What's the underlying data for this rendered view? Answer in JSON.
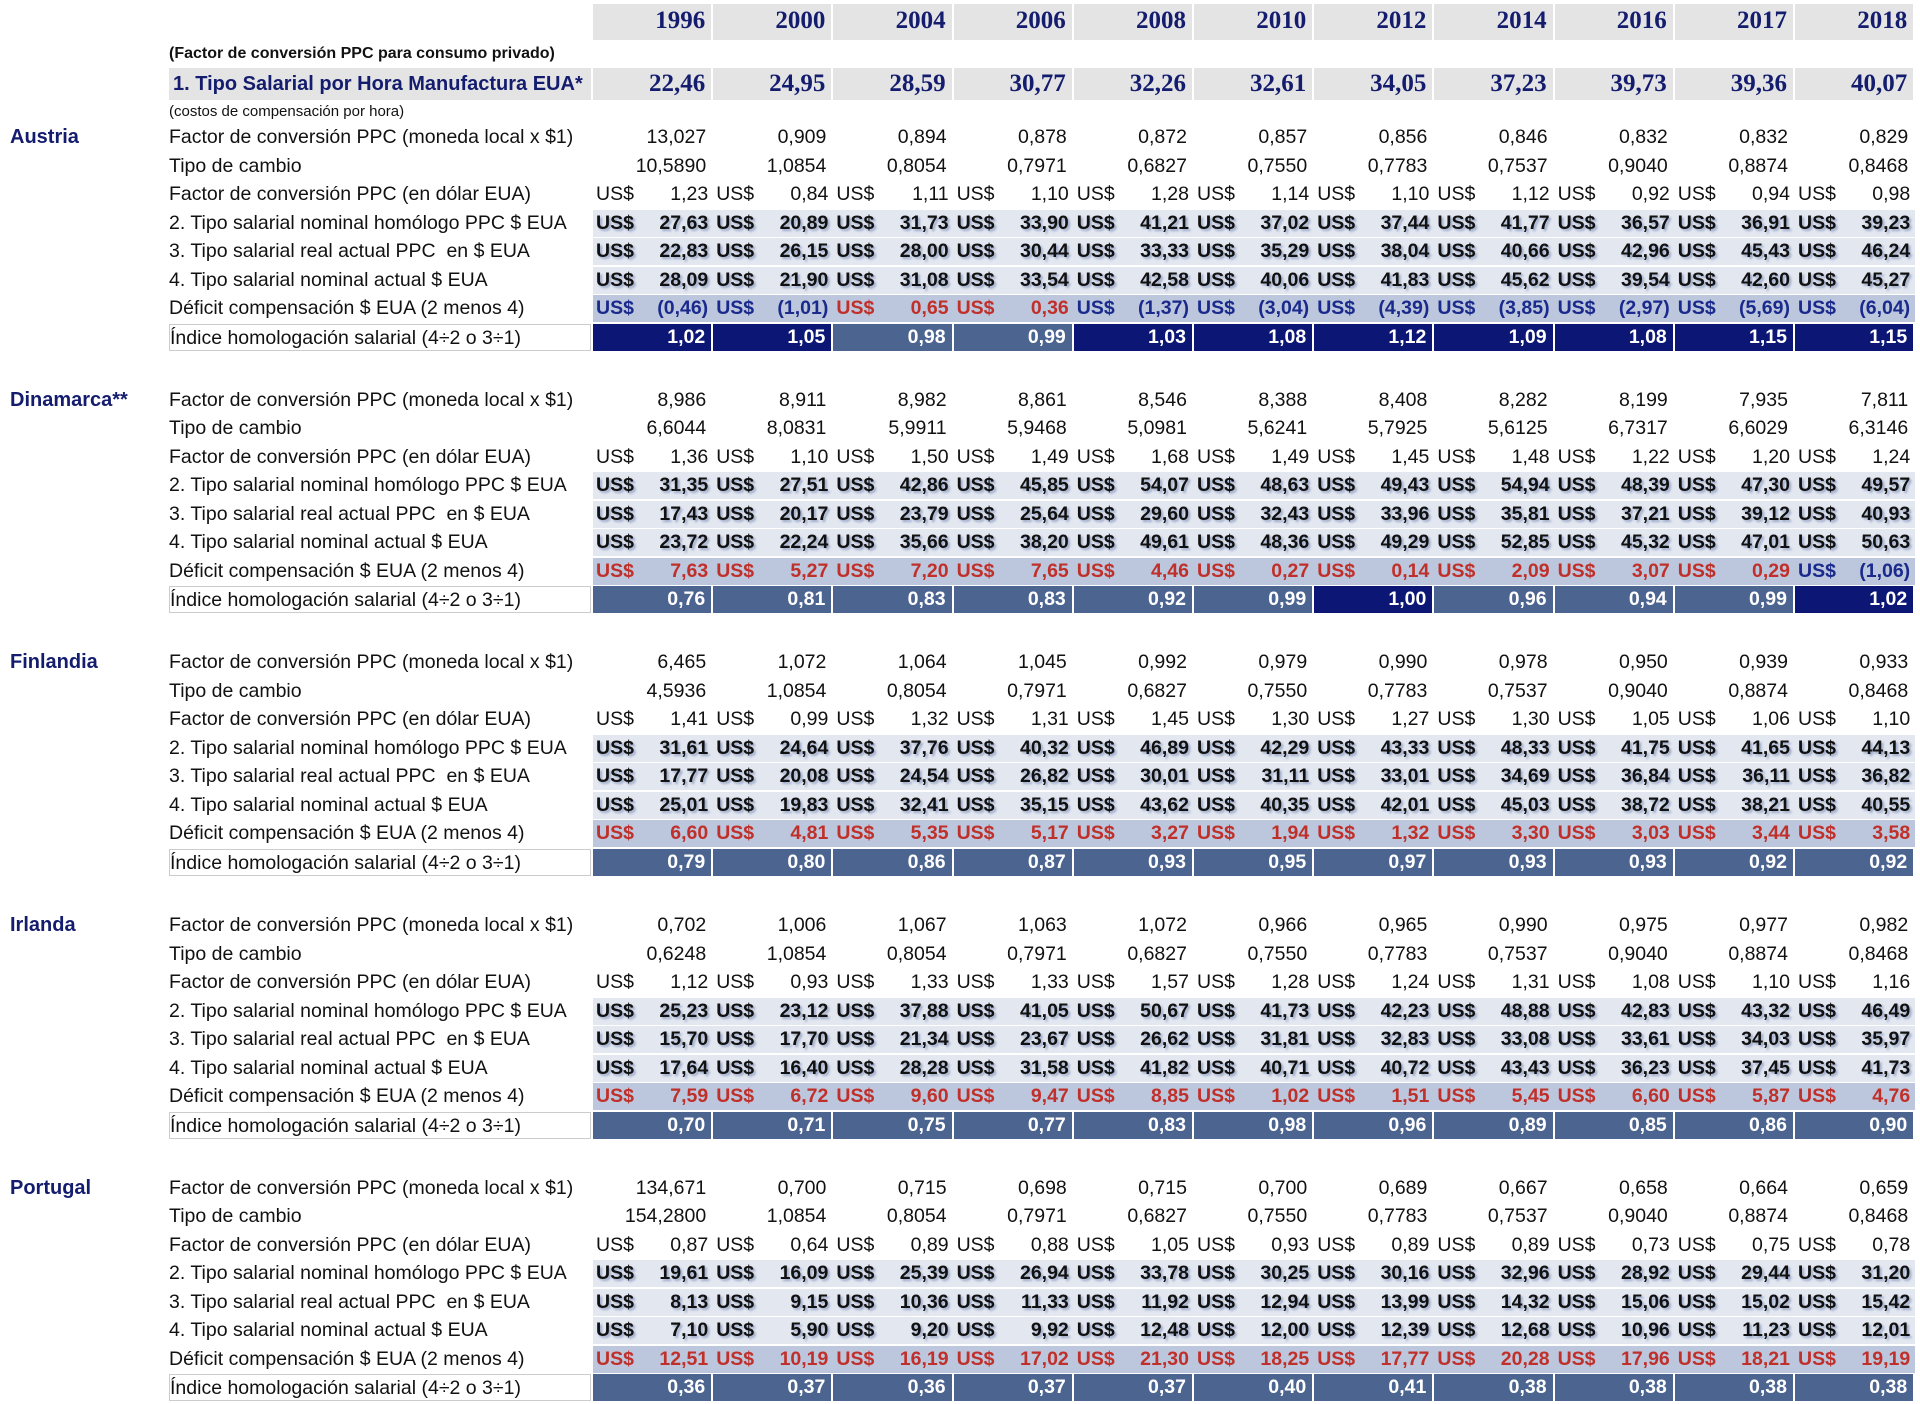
{
  "header": {
    "years": [
      "1996",
      "2000",
      "2004",
      "2006",
      "2008",
      "2010",
      "2012",
      "2014",
      "2016",
      "2017",
      "2018"
    ],
    "note": "(Factor de conversión PPC para consumo privado)",
    "us_row": {
      "label": "1. Tipo Salarial por Hora Manufactura EUA*",
      "values": [
        "22,46",
        "24,95",
        "28,59",
        "30,77",
        "32,26",
        "32,61",
        "34,05",
        "37,23",
        "39,73",
        "39,36",
        "40,07"
      ]
    },
    "us_note": "(costos de compensación por hora)"
  },
  "currency": "US$",
  "countries": [
    {
      "name": "Austria",
      "rows": [
        {
          "label": "Factor de conversión PPC (moneda local x $1)",
          "values": [
            "13,027",
            "0,909",
            "0,894",
            "0,878",
            "0,872",
            "0,857",
            "0,856",
            "0,846",
            "0,832",
            "0,832",
            "0,829"
          ]
        },
        {
          "label": "Tipo de cambio",
          "values": [
            "10,5890",
            "1,0854",
            "0,8054",
            "0,7971",
            "0,6827",
            "0,7550",
            "0,7783",
            "0,7537",
            "0,9040",
            "0,8874",
            "0,8468"
          ]
        },
        {
          "label": "Factor de conversión PPC (en dólar EUA)",
          "values": [
            "1,23",
            "0,84",
            "1,11",
            "1,10",
            "1,28",
            "1,14",
            "1,10",
            "1,12",
            "0,92",
            "0,94",
            "0,98"
          ]
        },
        {
          "label": "2. Tipo salarial nominal homólogo PPC $ EUA",
          "values": [
            "27,63",
            "20,89",
            "31,73",
            "33,90",
            "41,21",
            "37,02",
            "37,44",
            "41,77",
            "36,57",
            "36,91",
            "39,23"
          ]
        },
        {
          "label": "3. Tipo salarial real actual PPC  en $ EUA",
          "values": [
            "22,83",
            "26,15",
            "28,00",
            "30,44",
            "33,33",
            "35,29",
            "38,04",
            "40,66",
            "42,96",
            "45,43",
            "46,24"
          ]
        },
        {
          "label": "4. Tipo salarial nominal actual $ EUA",
          "values": [
            "28,09",
            "21,90",
            "31,08",
            "33,54",
            "42,58",
            "40,06",
            "41,83",
            "45,62",
            "39,54",
            "42,60",
            "45,27"
          ]
        },
        {
          "label": "Déficit compensación $ EUA (2 menos 4)",
          "values": [
            "(0,46)",
            "(1,01)",
            "0,65",
            "0,36",
            "(1,37)",
            "(3,04)",
            "(4,39)",
            "(3,85)",
            "(2,97)",
            "(5,69)",
            "(6,04)"
          ]
        },
        {
          "label": "Índice homologación salarial (4÷2 o 3÷1)",
          "values": [
            "1,02",
            "1,05",
            "0,98",
            "0,99",
            "1,03",
            "1,08",
            "1,12",
            "1,09",
            "1,08",
            "1,15",
            "1,15"
          ]
        }
      ]
    },
    {
      "name": "Dinamarca**",
      "rows": [
        {
          "label": "Factor de conversión PPC (moneda local x $1)",
          "values": [
            "8,986",
            "8,911",
            "8,982",
            "8,861",
            "8,546",
            "8,388",
            "8,408",
            "8,282",
            "8,199",
            "7,935",
            "7,811"
          ]
        },
        {
          "label": "Tipo de cambio",
          "values": [
            "6,6044",
            "8,0831",
            "5,9911",
            "5,9468",
            "5,0981",
            "5,6241",
            "5,7925",
            "5,6125",
            "6,7317",
            "6,6029",
            "6,3146"
          ]
        },
        {
          "label": "Factor de conversión PPC (en dólar EUA)",
          "values": [
            "1,36",
            "1,10",
            "1,50",
            "1,49",
            "1,68",
            "1,49",
            "1,45",
            "1,48",
            "1,22",
            "1,20",
            "1,24"
          ]
        },
        {
          "label": "2. Tipo salarial nominal homólogo PPC $ EUA",
          "values": [
            "31,35",
            "27,51",
            "42,86",
            "45,85",
            "54,07",
            "48,63",
            "49,43",
            "54,94",
            "48,39",
            "47,30",
            "49,57"
          ]
        },
        {
          "label": "3. Tipo salarial real actual PPC  en $ EUA",
          "values": [
            "17,43",
            "20,17",
            "23,79",
            "25,64",
            "29,60",
            "32,43",
            "33,96",
            "35,81",
            "37,21",
            "39,12",
            "40,93"
          ]
        },
        {
          "label": "4. Tipo salarial nominal actual $ EUA",
          "values": [
            "23,72",
            "22,24",
            "35,66",
            "38,20",
            "49,61",
            "48,36",
            "49,29",
            "52,85",
            "45,32",
            "47,01",
            "50,63"
          ]
        },
        {
          "label": "Déficit compensación $ EUA (2 menos 4)",
          "values": [
            "7,63",
            "5,27",
            "7,20",
            "7,65",
            "4,46",
            "0,27",
            "0,14",
            "2,09",
            "3,07",
            "0,29",
            "(1,06)"
          ]
        },
        {
          "label": "Índice homologación salarial (4÷2 o 3÷1)",
          "values": [
            "0,76",
            "0,81",
            "0,83",
            "0,83",
            "0,92",
            "0,99",
            "1,00",
            "0,96",
            "0,94",
            "0,99",
            "1,02"
          ]
        }
      ]
    },
    {
      "name": "Finlandia",
      "rows": [
        {
          "label": "Factor de conversión PPC (moneda local x $1)",
          "values": [
            "6,465",
            "1,072",
            "1,064",
            "1,045",
            "0,992",
            "0,979",
            "0,990",
            "0,978",
            "0,950",
            "0,939",
            "0,933"
          ]
        },
        {
          "label": "Tipo de cambio",
          "values": [
            "4,5936",
            "1,0854",
            "0,8054",
            "0,7971",
            "0,6827",
            "0,7550",
            "0,7783",
            "0,7537",
            "0,9040",
            "0,8874",
            "0,8468"
          ]
        },
        {
          "label": "Factor de conversión PPC (en dólar EUA)",
          "values": [
            "1,41",
            "0,99",
            "1,32",
            "1,31",
            "1,45",
            "1,30",
            "1,27",
            "1,30",
            "1,05",
            "1,06",
            "1,10"
          ]
        },
        {
          "label": "2. Tipo salarial nominal homólogo PPC $ EUA",
          "values": [
            "31,61",
            "24,64",
            "37,76",
            "40,32",
            "46,89",
            "42,29",
            "43,33",
            "48,33",
            "41,75",
            "41,65",
            "44,13"
          ]
        },
        {
          "label": "3. Tipo salarial real actual PPC  en $ EUA",
          "values": [
            "17,77",
            "20,08",
            "24,54",
            "26,82",
            "30,01",
            "31,11",
            "33,01",
            "34,69",
            "36,84",
            "36,11",
            "36,82"
          ]
        },
        {
          "label": "4. Tipo salarial nominal actual $ EUA",
          "values": [
            "25,01",
            "19,83",
            "32,41",
            "35,15",
            "43,62",
            "40,35",
            "42,01",
            "45,03",
            "38,72",
            "38,21",
            "40,55"
          ]
        },
        {
          "label": "Déficit compensación $ EUA (2 menos 4)",
          "values": [
            "6,60",
            "4,81",
            "5,35",
            "5,17",
            "3,27",
            "1,94",
            "1,32",
            "3,30",
            "3,03",
            "3,44",
            "3,58"
          ]
        },
        {
          "label": "Índice homologación salarial (4÷2 o 3÷1)",
          "values": [
            "0,79",
            "0,80",
            "0,86",
            "0,87",
            "0,93",
            "0,95",
            "0,97",
            "0,93",
            "0,93",
            "0,92",
            "0,92"
          ]
        }
      ]
    },
    {
      "name": "Irlanda",
      "rows": [
        {
          "label": "Factor de conversión PPC (moneda local x $1)",
          "values": [
            "0,702",
            "1,006",
            "1,067",
            "1,063",
            "1,072",
            "0,966",
            "0,965",
            "0,990",
            "0,975",
            "0,977",
            "0,982"
          ]
        },
        {
          "label": "Tipo de cambio",
          "values": [
            "0,6248",
            "1,0854",
            "0,8054",
            "0,7971",
            "0,6827",
            "0,7550",
            "0,7783",
            "0,7537",
            "0,9040",
            "0,8874",
            "0,8468"
          ]
        },
        {
          "label": "Factor de conversión PPC (en dólar EUA)",
          "values": [
            "1,12",
            "0,93",
            "1,33",
            "1,33",
            "1,57",
            "1,28",
            "1,24",
            "1,31",
            "1,08",
            "1,10",
            "1,16"
          ]
        },
        {
          "label": "2. Tipo salarial nominal homólogo PPC $ EUA",
          "values": [
            "25,23",
            "23,12",
            "37,88",
            "41,05",
            "50,67",
            "41,73",
            "42,23",
            "48,88",
            "42,83",
            "43,32",
            "46,49"
          ]
        },
        {
          "label": "3. Tipo salarial real actual PPC  en $ EUA",
          "values": [
            "15,70",
            "17,70",
            "21,34",
            "23,67",
            "26,62",
            "31,81",
            "32,83",
            "33,08",
            "33,61",
            "34,03",
            "35,97"
          ]
        },
        {
          "label": "4. Tipo salarial nominal actual $ EUA",
          "values": [
            "17,64",
            "16,40",
            "28,28",
            "31,58",
            "41,82",
            "40,71",
            "40,72",
            "43,43",
            "36,23",
            "37,45",
            "41,73"
          ]
        },
        {
          "label": "Déficit compensación $ EUA (2 menos 4)",
          "values": [
            "7,59",
            "6,72",
            "9,60",
            "9,47",
            "8,85",
            "1,02",
            "1,51",
            "5,45",
            "6,60",
            "5,87",
            "4,76"
          ]
        },
        {
          "label": "Índice homologación salarial (4÷2 o 3÷1)",
          "values": [
            "0,70",
            "0,71",
            "0,75",
            "0,77",
            "0,83",
            "0,98",
            "0,96",
            "0,89",
            "0,85",
            "0,86",
            "0,90"
          ]
        }
      ]
    },
    {
      "name": "Portugal",
      "rows": [
        {
          "label": "Factor de conversión PPC (moneda local x $1)",
          "values": [
            "134,671",
            "0,700",
            "0,715",
            "0,698",
            "0,715",
            "0,700",
            "0,689",
            "0,667",
            "0,658",
            "0,664",
            "0,659"
          ]
        },
        {
          "label": "Tipo de cambio",
          "values": [
            "154,2800",
            "1,0854",
            "0,8054",
            "0,7971",
            "0,6827",
            "0,7550",
            "0,7783",
            "0,7537",
            "0,9040",
            "0,8874",
            "0,8468"
          ]
        },
        {
          "label": "Factor de conversión PPC (en dólar EUA)",
          "values": [
            "0,87",
            "0,64",
            "0,89",
            "0,88",
            "1,05",
            "0,93",
            "0,89",
            "0,89",
            "0,73",
            "0,75",
            "0,78"
          ]
        },
        {
          "label": "2. Tipo salarial nominal homólogo PPC $ EUA",
          "values": [
            "19,61",
            "16,09",
            "25,39",
            "26,94",
            "33,78",
            "30,25",
            "30,16",
            "32,96",
            "28,92",
            "29,44",
            "31,20"
          ]
        },
        {
          "label": "3. Tipo salarial real actual PPC  en $ EUA",
          "values": [
            "8,13",
            "9,15",
            "10,36",
            "11,33",
            "11,92",
            "12,94",
            "13,99",
            "14,32",
            "15,06",
            "15,02",
            "15,42"
          ]
        },
        {
          "label": "4. Tipo salarial nominal actual $ EUA",
          "values": [
            "7,10",
            "5,90",
            "9,20",
            "9,92",
            "12,48",
            "12,00",
            "12,39",
            "12,68",
            "10,96",
            "11,23",
            "12,01"
          ]
        },
        {
          "label": "Déficit compensación $ EUA (2 menos 4)",
          "values": [
            "12,51",
            "10,19",
            "16,19",
            "17,02",
            "21,30",
            "18,25",
            "17,77",
            "20,28",
            "17,96",
            "18,21",
            "19,19"
          ]
        },
        {
          "label": "Índice homologación salarial (4÷2 o 3÷1)",
          "values": [
            "0,36",
            "0,37",
            "0,36",
            "0,37",
            "0,37",
            "0,40",
            "0,41",
            "0,38",
            "0,38",
            "0,38",
            "0,38"
          ]
        }
      ]
    }
  ]
}
